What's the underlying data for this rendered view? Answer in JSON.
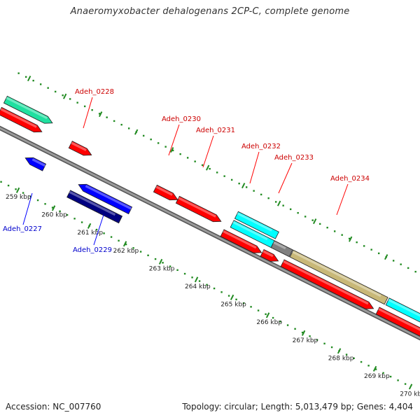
{
  "title": "Anaeromyxobacter dehalogenans 2CP-C, complete genome",
  "footer": {
    "accession": "Accession: NC_007760",
    "summary": "Topology: circular; Length: 5,013,479 bp; Genes: 4,404"
  },
  "colors": {
    "forward_gene": "#ff0000",
    "reverse_gene": "#0000ff",
    "reverse_gene_dark": "#000080",
    "rna": "#00ffff",
    "teal_feature": "#20e0a0",
    "olive_feature": "#c8b878",
    "pseudo_gene": "#808080",
    "backbone": "#808080",
    "ruler": "#228b22",
    "forward_label": "#cc0000",
    "reverse_label": "#0000cc"
  },
  "ticks": [
    {
      "label": "259 kbp"
    },
    {
      "label": "260 kbp"
    },
    {
      "label": "261 kbp"
    },
    {
      "label": "262 kbp"
    },
    {
      "label": "263 kbp"
    },
    {
      "label": "264 kbp"
    },
    {
      "label": "265 kbp"
    },
    {
      "label": "266 kbp"
    },
    {
      "label": "267 kbp"
    },
    {
      "label": "268 kbp"
    },
    {
      "label": "269 kbp"
    },
    {
      "label": "270 kbp"
    }
  ],
  "gene_labels": [
    {
      "text": "Adeh_0227",
      "strand": "reverse"
    },
    {
      "text": "Adeh_0228",
      "strand": "forward"
    },
    {
      "text": "Adeh_0229",
      "strand": "reverse"
    },
    {
      "text": "Adeh_0230",
      "strand": "forward"
    },
    {
      "text": "Adeh_0231",
      "strand": "forward"
    },
    {
      "text": "Adeh_0232",
      "strand": "forward"
    },
    {
      "text": "Adeh_0233",
      "strand": "forward"
    },
    {
      "text": "Adeh_0234",
      "strand": "forward"
    }
  ]
}
